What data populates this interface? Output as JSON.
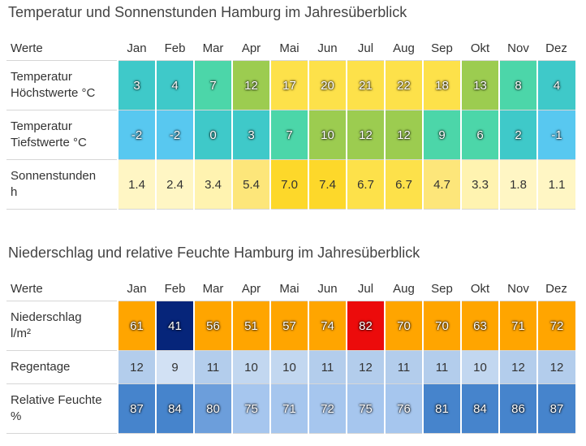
{
  "temp_section": {
    "title": "Temperatur und Sonnenstunden Hamburg im Jahresüberblick",
    "header_label": "Werte",
    "months": [
      "Jan",
      "Feb",
      "Mar",
      "Apr",
      "Mai",
      "Jun",
      "Jul",
      "Aug",
      "Sep",
      "Okt",
      "Nov",
      "Dez"
    ],
    "rows": [
      {
        "label": [
          "Temperatur",
          "Höchstwerte °C"
        ],
        "values": [
          "3",
          "4",
          "7",
          "12",
          "17",
          "20",
          "21",
          "22",
          "18",
          "13",
          "8",
          "4"
        ],
        "colors": [
          "#3fc9c9",
          "#3fc9c9",
          "#4cd6a9",
          "#9ccc50",
          "#fde14a",
          "#fde14a",
          "#fde14a",
          "#fde14a",
          "#fde14a",
          "#9ccc50",
          "#4cd6a9",
          "#3fc9c9"
        ],
        "outlined": true
      },
      {
        "label": [
          "Temperatur",
          "Tiefstwerte °C"
        ],
        "values": [
          "-2",
          "-2",
          "0",
          "3",
          "7",
          "10",
          "12",
          "12",
          "9",
          "6",
          "2",
          "-1"
        ],
        "colors": [
          "#58c8f0",
          "#58c8f0",
          "#3fc9c9",
          "#3fc9c9",
          "#4cd6a9",
          "#9ccc50",
          "#9ccc50",
          "#9ccc50",
          "#4cd6a9",
          "#4cd6a9",
          "#3fc9c9",
          "#58c8f0"
        ],
        "outlined": true
      },
      {
        "label": [
          "Sonnenstunden",
          "h"
        ],
        "values": [
          "1.4",
          "2.4",
          "3.4",
          "5.4",
          "7.0",
          "7.4",
          "6.7",
          "6.7",
          "4.7",
          "3.3",
          "1.8",
          "1.1"
        ],
        "colors": [
          "#fff6c4",
          "#fff6c4",
          "#fff3b0",
          "#fde67a",
          "#fdd82a",
          "#fdd82a",
          "#fde14a",
          "#fde14a",
          "#fde67a",
          "#fff3b0",
          "#fff6c4",
          "#fff6c4"
        ],
        "outlined": false
      }
    ]
  },
  "rain_section": {
    "title": "Niederschlag und relative Feuchte Hamburg im Jahresüberblick",
    "header_label": "Werte",
    "months": [
      "Jan",
      "Feb",
      "Mar",
      "Apr",
      "Mai",
      "Jun",
      "Jul",
      "Aug",
      "Sep",
      "Okt",
      "Nov",
      "Dez"
    ],
    "rows": [
      {
        "label": [
          "Niederschlag",
          "l/m²"
        ],
        "values": [
          "61",
          "41",
          "56",
          "51",
          "57",
          "74",
          "82",
          "70",
          "70",
          "63",
          "71",
          "72"
        ],
        "colors": [
          "#ffa500",
          "#06257a",
          "#ffa500",
          "#ffa500",
          "#ffa500",
          "#ffa500",
          "#ec0b0b",
          "#ffa500",
          "#ffa500",
          "#ffa500",
          "#ffa500",
          "#ffa500"
        ],
        "outlined": true,
        "short": false
      },
      {
        "label": [
          "Regentage"
        ],
        "values": [
          "12",
          "9",
          "11",
          "10",
          "10",
          "11",
          "12",
          "11",
          "11",
          "10",
          "12",
          "12"
        ],
        "colors": [
          "#b3cdec",
          "#d2e1f4",
          "#b3cdec",
          "#c2d7f0",
          "#c2d7f0",
          "#b3cdec",
          "#b3cdec",
          "#b3cdec",
          "#b3cdec",
          "#c2d7f0",
          "#b3cdec",
          "#b3cdec"
        ],
        "outlined": false,
        "short": true
      },
      {
        "label": [
          "Relative Feuchte",
          "%"
        ],
        "values": [
          "87",
          "84",
          "80",
          "75",
          "71",
          "72",
          "75",
          "76",
          "81",
          "84",
          "86",
          "87"
        ],
        "colors": [
          "#4684cc",
          "#4684cc",
          "#6c9edb",
          "#a6c6ee",
          "#a6c6ee",
          "#a6c6ee",
          "#a6c6ee",
          "#a6c6ee",
          "#4684cc",
          "#4684cc",
          "#4684cc",
          "#4684cc"
        ],
        "outlined": true,
        "short": false
      }
    ]
  }
}
